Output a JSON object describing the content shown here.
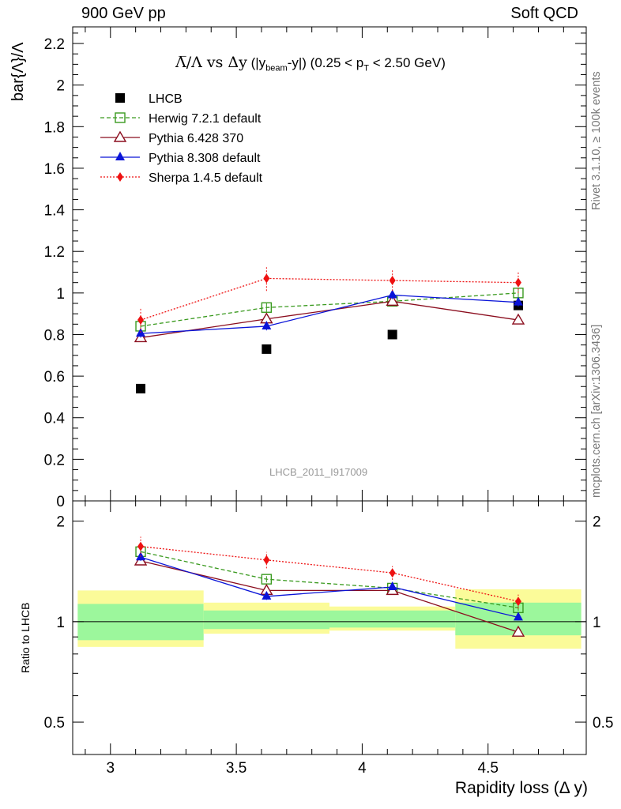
{
  "header": {
    "left": "900 GeV pp",
    "right": "Soft QCD"
  },
  "side_labels": {
    "rivet": "Rivet 3.1.10, ≥ 100k events",
    "mcplots": "mcplots.cern.ch [arXiv:1306.3436]"
  },
  "title": {
    "main": "Λ̅/Λ vs Δy",
    "pre": "(|y",
    "sub1": "beam",
    "mid": "-y|) (0.25 < p",
    "sub2": "T",
    "post": " < 2.50 GeV)"
  },
  "analysis_id": "LHCB_2011_I917009",
  "chart_data": {
    "type": "line",
    "title": "Λ̅/Λ vs Δy (|y_beam-y|) (0.25 < p_T < 2.50 GeV)",
    "xlabel": "Rapidity loss (Δ y)",
    "ylabel": "bar{Λ}/Λ",
    "ratio_ylabel": "Ratio to LHCB",
    "xlim": [
      2.85,
      4.89
    ],
    "ylim": [
      0,
      2.28
    ],
    "ratio_ylim": [
      0.4,
      2.3
    ],
    "x_ticks": [
      3,
      3.5,
      4,
      4.5
    ],
    "x_tick_labels": [
      "3",
      "3.5",
      "4",
      "4.5"
    ],
    "y_ticks": [
      0,
      0.2,
      0.4,
      0.6,
      0.8,
      1,
      1.2,
      1.4,
      1.6,
      1.8,
      2,
      2.2
    ],
    "y_tick_labels": [
      "0",
      "0.2",
      "0.4",
      "0.6",
      "0.8",
      "1",
      "1.2",
      "1.4",
      "1.6",
      "1.8",
      "2",
      "2.2"
    ],
    "ratio_ticks": [
      0.5,
      1,
      2
    ],
    "ratio_tick_labels": [
      "0.5",
      "1",
      "2"
    ],
    "x": [
      3.12,
      3.62,
      4.12,
      4.62
    ],
    "bin_edges": [
      2.87,
      3.37,
      3.87,
      4.37,
      4.87
    ],
    "band_inner": [
      [
        0.88,
        1.13
      ],
      [
        0.95,
        1.08
      ],
      [
        0.96,
        1.08
      ],
      [
        0.91,
        1.14
      ]
    ],
    "band_outer": [
      [
        0.84,
        1.24
      ],
      [
        0.92,
        1.14
      ],
      [
        0.94,
        1.11
      ],
      [
        0.83,
        1.25
      ]
    ],
    "legend_position": "top-left",
    "series": [
      {
        "name": "LHCB",
        "color": "#000000",
        "marker": "square",
        "line": "none",
        "values": [
          0.54,
          0.73,
          0.8,
          0.94
        ],
        "errors": [
          0,
          0,
          0,
          0
        ],
        "ratio": [
          1,
          1,
          1,
          1
        ]
      },
      {
        "name": "Herwig 7.2.1 default",
        "color": "#3a9a1f",
        "marker": "open-square",
        "line": "dashed",
        "values": [
          0.84,
          0.93,
          0.96,
          1.0
        ],
        "errors": [
          0.02,
          0.02,
          0.02,
          0.02
        ],
        "ratio": [
          1.62,
          1.34,
          1.26,
          1.1
        ]
      },
      {
        "name": "Pythia 6.428 370",
        "color": "#8b0d1e",
        "marker": "open-triangle",
        "line": "solid",
        "values": [
          0.785,
          0.875,
          0.96,
          0.87
        ],
        "errors": [
          0.02,
          0.02,
          0.02,
          0.02
        ],
        "ratio": [
          1.52,
          1.24,
          1.24,
          0.93
        ]
      },
      {
        "name": "Pythia 8.308 default",
        "color": "#0a14d8",
        "marker": "filled-triangle",
        "line": "solid",
        "values": [
          0.805,
          0.84,
          0.99,
          0.955
        ],
        "errors": [
          0.02,
          0.02,
          0.02,
          0.02
        ],
        "ratio": [
          1.56,
          1.19,
          1.27,
          1.03
        ]
      },
      {
        "name": "Sherpa 1.4.5 default",
        "color": "#ee1111",
        "marker": "diamond",
        "line": "dotted",
        "values": [
          0.87,
          1.07,
          1.06,
          1.05
        ],
        "errors": [
          0.06,
          0.06,
          0.05,
          0.05
        ],
        "ratio": [
          1.68,
          1.53,
          1.4,
          1.15
        ]
      }
    ]
  }
}
